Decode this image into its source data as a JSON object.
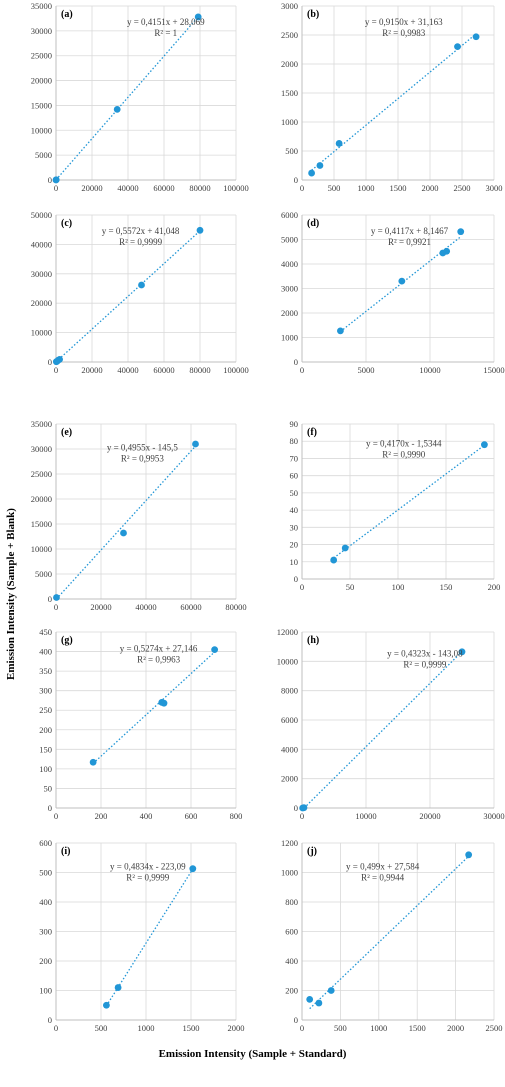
{
  "figure": {
    "ylabel": "Emission Intensity (Sample + Blank)",
    "xlabel": "Emission Intensity (Sample + Standard)"
  },
  "style": {
    "point_color": "#2196d6",
    "trend_color": "#2196d6",
    "grid_color": "#d9d9d9",
    "axis_color": "#bfbfbf"
  },
  "chart_data": [
    {
      "panel": "(a)",
      "type": "scatter",
      "equation": "y = 0,4151x + 28,069",
      "r2": "R² = 1",
      "xlim": [
        0,
        100000
      ],
      "xticks": [
        0,
        20000,
        40000,
        60000,
        80000,
        100000
      ],
      "ylim": [
        0,
        35000
      ],
      "yticks": [
        0,
        5000,
        10000,
        15000,
        20000,
        25000,
        30000,
        35000
      ],
      "points": [
        [
          0,
          0
        ],
        [
          100,
          50
        ],
        [
          34000,
          14200
        ],
        [
          79000,
          32800
        ]
      ],
      "trend": [
        [
          0,
          28
        ],
        [
          79000,
          32821
        ]
      ]
    },
    {
      "panel": "(b)",
      "type": "scatter",
      "equation": "y = 0,9150x + 31,163",
      "r2": "R² = 0,9983",
      "xlim": [
        0,
        3000
      ],
      "xticks": [
        0,
        500,
        1000,
        1500,
        2000,
        2500,
        3000
      ],
      "ylim": [
        0,
        3000
      ],
      "yticks": [
        0,
        500,
        1000,
        1500,
        2000,
        2500,
        3000
      ],
      "points": [
        [
          150,
          120
        ],
        [
          280,
          250
        ],
        [
          580,
          630
        ],
        [
          2430,
          2300
        ],
        [
          2720,
          2470
        ]
      ],
      "trend": [
        [
          150,
          168
        ],
        [
          2720,
          2520
        ]
      ]
    },
    {
      "panel": "(c)",
      "type": "scatter",
      "equation": "y = 0,5572x + 41,048",
      "r2": "R² = 0,9999",
      "xlim": [
        0,
        100000
      ],
      "xticks": [
        0,
        20000,
        40000,
        60000,
        80000,
        100000
      ],
      "ylim": [
        0,
        50000
      ],
      "yticks": [
        0,
        10000,
        20000,
        30000,
        40000,
        50000
      ],
      "points": [
        [
          200,
          100
        ],
        [
          700,
          300
        ],
        [
          1200,
          600
        ],
        [
          2000,
          900
        ],
        [
          47500,
          26200
        ],
        [
          80000,
          44800
        ]
      ],
      "trend": [
        [
          0,
          41
        ],
        [
          80000,
          44617
        ]
      ]
    },
    {
      "panel": "(d)",
      "type": "scatter",
      "equation": "y = 0,4117x + 8,1467",
      "r2": "R² = 0,9921",
      "xlim": [
        0,
        15000
      ],
      "xticks": [
        0,
        5000,
        10000,
        15000
      ],
      "ylim": [
        0,
        6000
      ],
      "yticks": [
        0,
        1000,
        2000,
        3000,
        4000,
        5000,
        6000
      ],
      "points": [
        [
          3000,
          1270
        ],
        [
          7800,
          3300
        ],
        [
          11000,
          4450
        ],
        [
          11300,
          4520
        ],
        [
          12400,
          5320
        ]
      ],
      "trend": [
        [
          3000,
          1243
        ],
        [
          12400,
          5113
        ]
      ]
    },
    {
      "panel": "(e)",
      "type": "scatter",
      "equation": "y = 0,4955x - 145,5",
      "r2": "R² = 0,9953",
      "xlim": [
        0,
        80000
      ],
      "xticks": [
        0,
        20000,
        40000,
        60000,
        80000
      ],
      "ylim": [
        0,
        35000
      ],
      "yticks": [
        0,
        5000,
        10000,
        15000,
        20000,
        25000,
        30000,
        35000
      ],
      "points": [
        [
          200,
          300
        ],
        [
          30000,
          13200
        ],
        [
          62000,
          31000
        ]
      ],
      "trend": [
        [
          200,
          0
        ],
        [
          62000,
          30575
        ]
      ]
    },
    {
      "panel": "(f)",
      "type": "scatter",
      "equation": "y = 0,4170x - 1,5344",
      "r2": "R² = 0,9990",
      "xlim": [
        0,
        200
      ],
      "xticks": [
        0,
        50,
        100,
        150,
        200
      ],
      "ylim": [
        0,
        90
      ],
      "yticks": [
        0,
        10,
        20,
        30,
        40,
        50,
        60,
        70,
        80,
        90
      ],
      "points": [
        [
          33,
          11
        ],
        [
          45,
          18
        ],
        [
          190,
          78
        ]
      ],
      "trend": [
        [
          33,
          12.2
        ],
        [
          190,
          77.7
        ]
      ]
    },
    {
      "panel": "(g)",
      "type": "scatter",
      "equation": "y = 0,5274x + 27,146",
      "r2": "R² = 0,9963",
      "xlim": [
        0,
        800
      ],
      "xticks": [
        0,
        200,
        400,
        600,
        800
      ],
      "ylim": [
        0,
        450
      ],
      "yticks": [
        0,
        50,
        100,
        150,
        200,
        250,
        300,
        350,
        400,
        450
      ],
      "points": [
        [
          165,
          117
        ],
        [
          470,
          270
        ],
        [
          480,
          268
        ],
        [
          705,
          405
        ]
      ],
      "trend": [
        [
          165,
          114
        ],
        [
          705,
          399
        ]
      ]
    },
    {
      "panel": "(h)",
      "type": "scatter",
      "equation": "y = 0,4323x - 143,08",
      "r2": "R² = 0,9999",
      "xlim": [
        0,
        30000
      ],
      "xticks": [
        0,
        10000,
        20000,
        30000
      ],
      "ylim": [
        0,
        12000
      ],
      "yticks": [
        0,
        2000,
        4000,
        6000,
        8000,
        10000,
        12000
      ],
      "points": [
        [
          100,
          0
        ],
        [
          300,
          20
        ],
        [
          25000,
          10650
        ]
      ],
      "trend": [
        [
          330,
          0
        ],
        [
          25000,
          10665
        ]
      ]
    },
    {
      "panel": "(i)",
      "type": "scatter",
      "equation": "y = 0,4834x - 223,09",
      "r2": "R² = 0,9999",
      "xlim": [
        0,
        2000
      ],
      "xticks": [
        0,
        500,
        1000,
        1500,
        2000
      ],
      "ylim": [
        0,
        600
      ],
      "yticks": [
        0,
        100,
        200,
        300,
        400,
        500,
        600
      ],
      "points": [
        [
          560,
          50
        ],
        [
          690,
          110
        ],
        [
          1520,
          513
        ]
      ],
      "trend": [
        [
          560,
          48
        ],
        [
          1520,
          512
        ]
      ]
    },
    {
      "panel": "(j)",
      "type": "scatter",
      "equation": "y = 0,499x + 27,584",
      "r2": "R² = 0,9944",
      "xlim": [
        0,
        2500
      ],
      "xticks": [
        0,
        500,
        1000,
        1500,
        2000,
        2500
      ],
      "ylim": [
        0,
        1200
      ],
      "yticks": [
        0,
        200,
        400,
        600,
        800,
        1000,
        1200
      ],
      "points": [
        [
          100,
          140
        ],
        [
          220,
          115
        ],
        [
          380,
          200
        ],
        [
          2170,
          1120
        ]
      ],
      "trend": [
        [
          100,
          77
        ],
        [
          2170,
          1110
        ]
      ]
    }
  ]
}
